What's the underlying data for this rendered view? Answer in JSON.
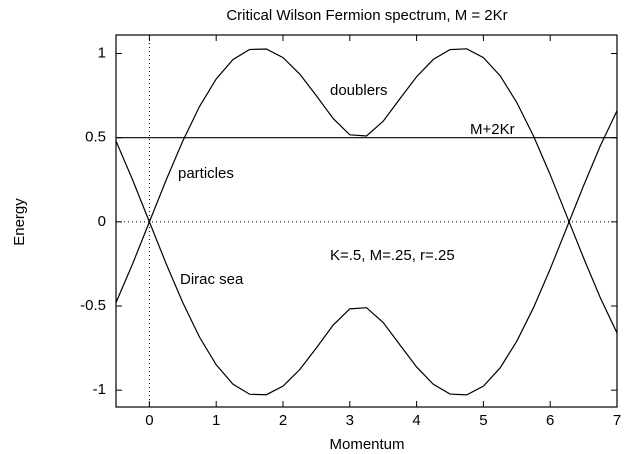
{
  "chart_data": {
    "type": "line",
    "title": "Critical Wilson Fermion spectrum, M = 2Kr",
    "xlabel": "Momentum",
    "ylabel": "Energy",
    "x": [
      -0.5,
      -0.25,
      0,
      0.25,
      0.5,
      0.75,
      1,
      1.25,
      1.5,
      1.75,
      2,
      2.25,
      2.5,
      2.75,
      3,
      3.25,
      3.5,
      3.75,
      4,
      4.25,
      4.5,
      4.75,
      5,
      5.25,
      5.5,
      5.75,
      6,
      6.25,
      6.5,
      6.75,
      7
    ],
    "series": [
      {
        "color": "#000000",
        "values": [
          -0.48,
          -0.248,
          0,
          0.248,
          0.48,
          0.685,
          0.849,
          0.964,
          1.024,
          1.027,
          0.976,
          0.878,
          0.749,
          0.614,
          0.517,
          0.51,
          0.598,
          0.731,
          0.862,
          0.965,
          1.023,
          1.028,
          0.976,
          0.868,
          0.709,
          0.51,
          0.28,
          0.033,
          -0.215,
          -0.451,
          -0.66
        ]
      },
      {
        "color": "#000000",
        "values": [
          0.48,
          0.248,
          0,
          -0.248,
          -0.48,
          -0.685,
          -0.849,
          -0.964,
          -1.024,
          -1.027,
          -0.976,
          -0.878,
          -0.749,
          -0.614,
          -0.517,
          -0.51,
          -0.598,
          -0.731,
          -0.862,
          -0.965,
          -1.023,
          -1.028,
          -0.976,
          -0.868,
          -0.709,
          -0.51,
          -0.28,
          -0.033,
          0.215,
          0.451,
          0.66
        ]
      }
    ],
    "hline": {
      "value": 0.5,
      "label": "M+2Kr"
    },
    "annotations": [
      "doublers",
      "particles",
      "Dirac sea",
      "K=.5, M=.25, r=.25"
    ],
    "xlim": [
      -0.5,
      7
    ],
    "ylim": [
      -1.1,
      1.11
    ],
    "xticks": [
      0,
      1,
      2,
      3,
      4,
      5,
      6,
      7
    ],
    "yticks": [
      -1,
      -0.5,
      0,
      0.5,
      1
    ]
  }
}
